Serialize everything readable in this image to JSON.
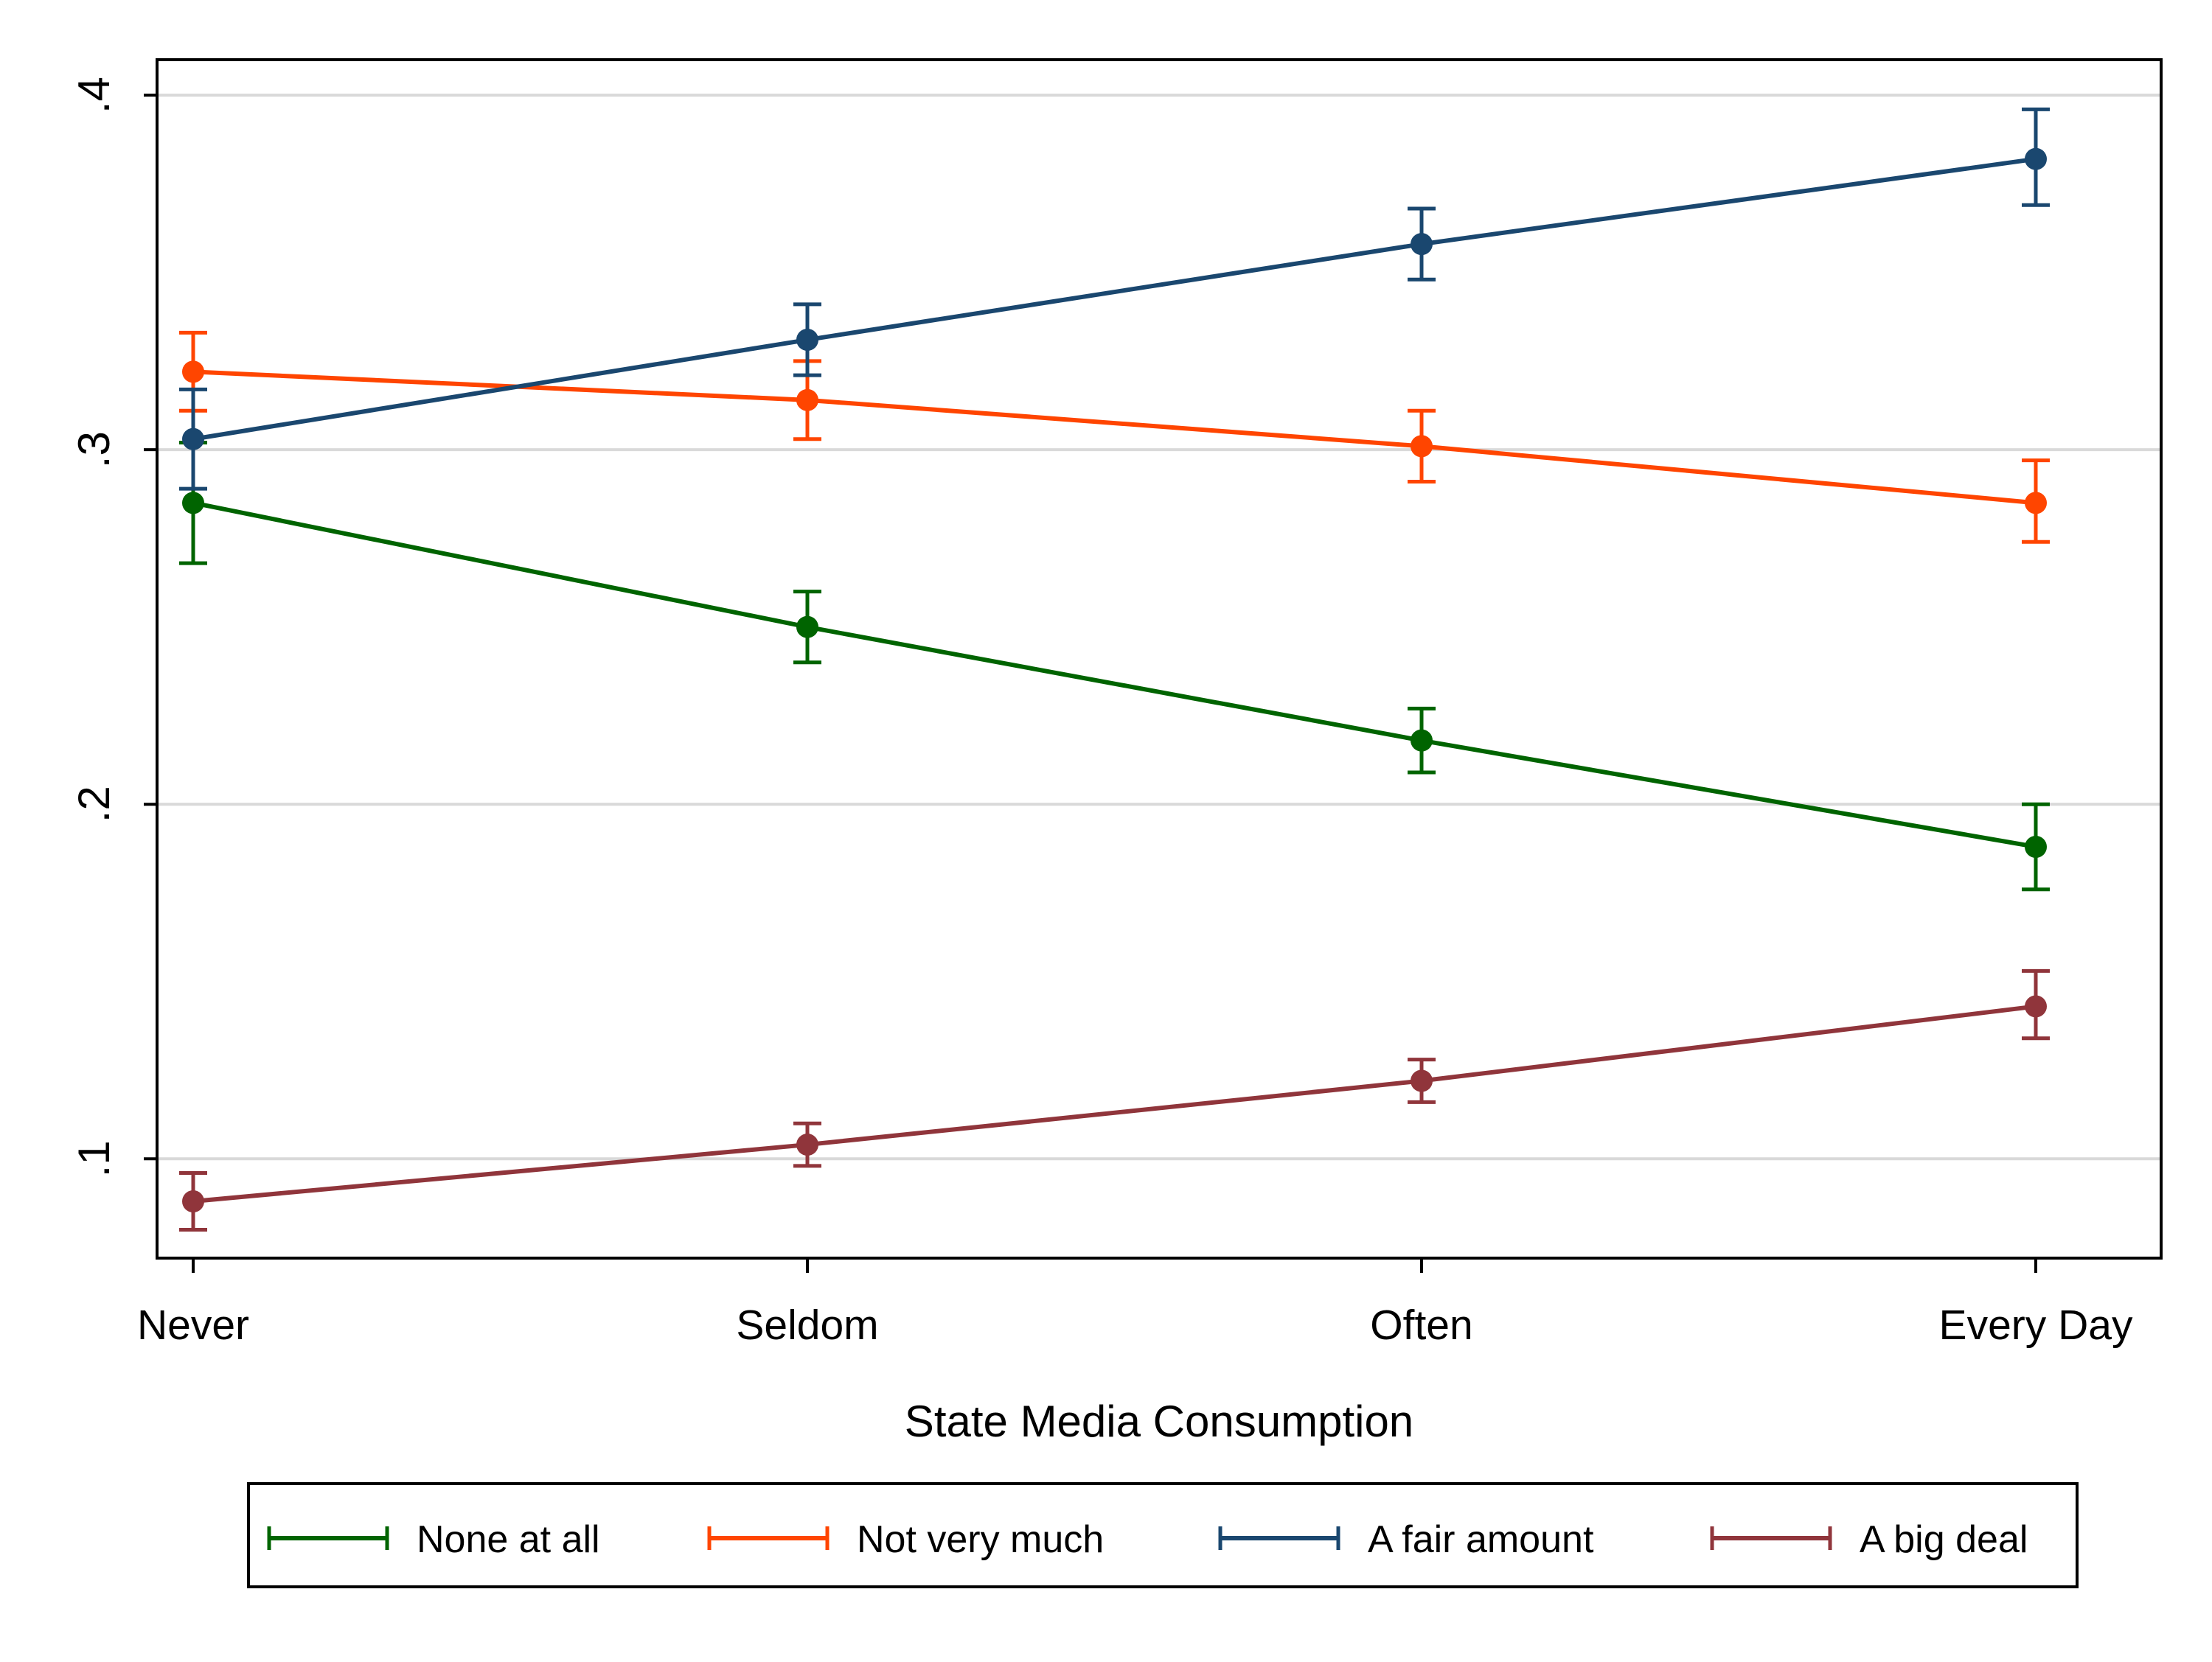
{
  "chart_data": {
    "type": "line",
    "title": "",
    "xlabel": "State Media Consumption",
    "ylabel": "",
    "categories": [
      "Never",
      "Seldom",
      "Often",
      "Every Day"
    ],
    "yticks": [
      ".1",
      ".2",
      ".3",
      ".4"
    ],
    "ytick_values": [
      0.1,
      0.2,
      0.3,
      0.4
    ],
    "ylim": [
      0.072,
      0.41
    ],
    "grid": true,
    "legend_position": "bottom",
    "series": [
      {
        "name": "None at all",
        "color": "#006400",
        "values": [
          0.285,
          0.25,
          0.218,
          0.188
        ],
        "ci_low": [
          0.268,
          0.24,
          0.209,
          0.176
        ],
        "ci_high": [
          0.302,
          0.26,
          0.227,
          0.2
        ]
      },
      {
        "name": "Not very much",
        "color": "#ff4500",
        "values": [
          0.322,
          0.314,
          0.301,
          0.285
        ],
        "ci_low": [
          0.311,
          0.303,
          0.291,
          0.274
        ],
        "ci_high": [
          0.333,
          0.325,
          0.311,
          0.297
        ]
      },
      {
        "name": "A fair amount",
        "color": "#1a476f",
        "values": [
          0.303,
          0.331,
          0.358,
          0.382
        ],
        "ci_low": [
          0.289,
          0.321,
          0.348,
          0.369
        ],
        "ci_high": [
          0.317,
          0.341,
          0.368,
          0.396
        ]
      },
      {
        "name": "A big deal",
        "color": "#90353b",
        "values": [
          0.088,
          0.104,
          0.122,
          0.143
        ],
        "ci_low": [
          0.08,
          0.098,
          0.116,
          0.134
        ],
        "ci_high": [
          0.096,
          0.11,
          0.128,
          0.153
        ]
      }
    ]
  }
}
